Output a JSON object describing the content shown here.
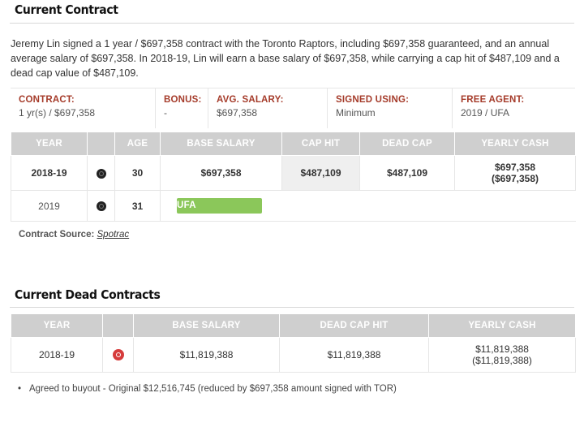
{
  "current_contract": {
    "title": "Current Contract",
    "summary": "Jeremy Lin signed a 1 year / $697,358 contract with the Toronto Raptors, including $697,358 guaranteed, and an annual average salary of $697,358. In 2018-19, Lin will earn a base salary of $697,358, while carrying a cap hit of $487,109 and a dead cap value of $487,109.",
    "info": [
      {
        "label": "CONTRACT:",
        "value": "1 yr(s) / $697,358"
      },
      {
        "label": "BONUS:",
        "value": "-"
      },
      {
        "label": "AVG. SALARY:",
        "value": "$697,358"
      },
      {
        "label": "SIGNED USING:",
        "value": "Minimum"
      },
      {
        "label": "FREE AGENT:",
        "value": "2019 / UFA"
      }
    ],
    "columns": [
      "YEAR",
      "",
      "AGE",
      "BASE SALARY",
      "CAP HIT",
      "DEAD CAP",
      "YEARLY CASH"
    ],
    "rows": [
      {
        "year": "2018-19",
        "team_icon": "raptors-logo-icon",
        "age": "30",
        "base_salary": "$697,358",
        "cap_hit": "$487,109",
        "dead_cap": "$487,109",
        "yearly_cash": "$697,358",
        "yearly_cash_cum": "($697,358)"
      },
      {
        "year": "2019",
        "team_icon": "raptors-logo-icon",
        "age": "31",
        "status": "UFA"
      }
    ],
    "source_label": "Contract Source:",
    "source_link": "Spotrac"
  },
  "dead_contracts": {
    "title": "Current Dead Contracts",
    "columns": [
      "YEAR",
      "",
      "BASE SALARY",
      "DEAD CAP HIT",
      "YEARLY CASH"
    ],
    "rows": [
      {
        "year": "2018-19",
        "team_icon": "hawks-logo-icon",
        "base_salary": "$11,819,388",
        "dead_cap_hit": "$11,819,388",
        "yearly_cash": "$11,819,388",
        "yearly_cash_cum": "($11,819,388)"
      }
    ],
    "note": "Agreed to buyout - Original $12,516,745 (reduced by $697,358 amount signed with TOR)"
  },
  "colors": {
    "label_red": "#a53b2a",
    "header_gray": "#cfcfcf",
    "ufa_green": "#8bc75a"
  }
}
